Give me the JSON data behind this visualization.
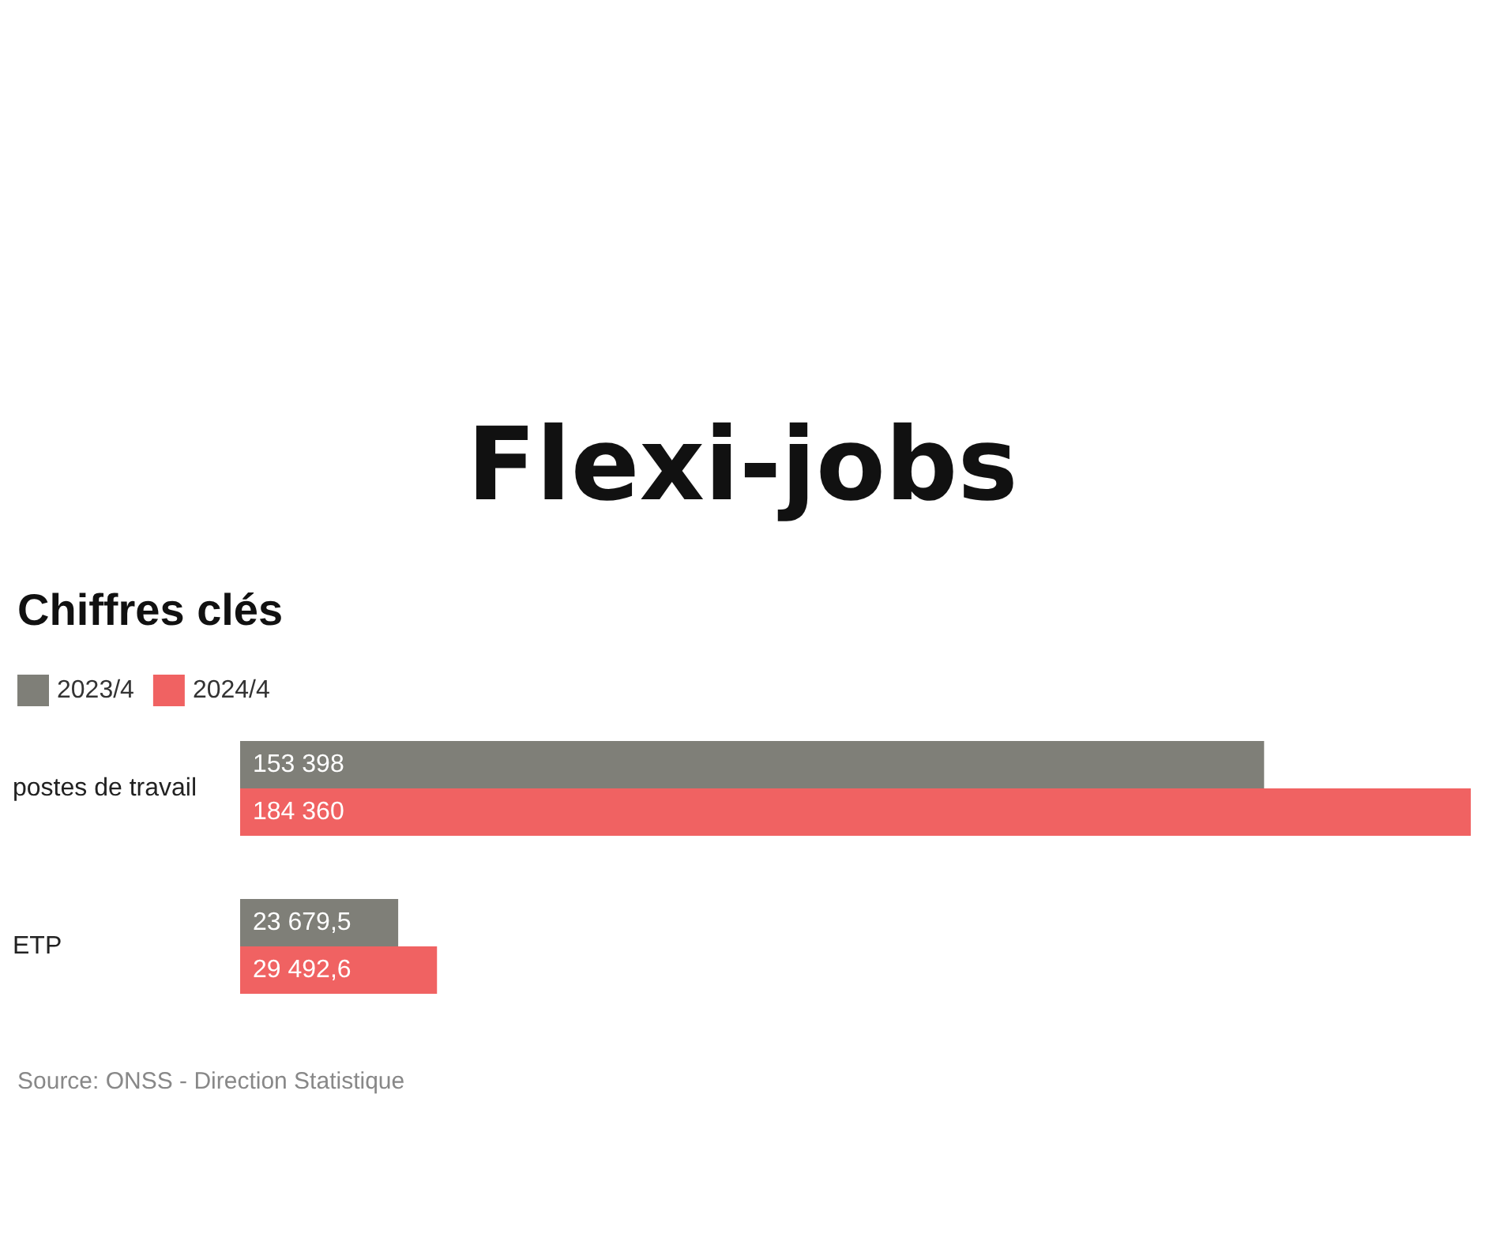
{
  "chart_data": {
    "type": "bar",
    "orientation": "horizontal",
    "title": "Flexi-jobs",
    "subtitle": "Chiffres clés",
    "categories": [
      "postes de travail",
      "ETP"
    ],
    "series": [
      {
        "name": "2023/4",
        "color": "#7f7f78",
        "values": [
          153398,
          23679.5
        ],
        "value_labels": [
          "153 398",
          "23 679,5"
        ]
      },
      {
        "name": "2024/4",
        "color": "#f06262",
        "values": [
          184360,
          29492.6
        ],
        "value_labels": [
          "184 360",
          "29 492,6"
        ]
      }
    ],
    "xlim": [
      0,
      184360
    ],
    "tick_labels": "y",
    "grid": false,
    "legend": "top left",
    "annotations": [
      "Source: ONSS - Direction Statistique"
    ]
  }
}
